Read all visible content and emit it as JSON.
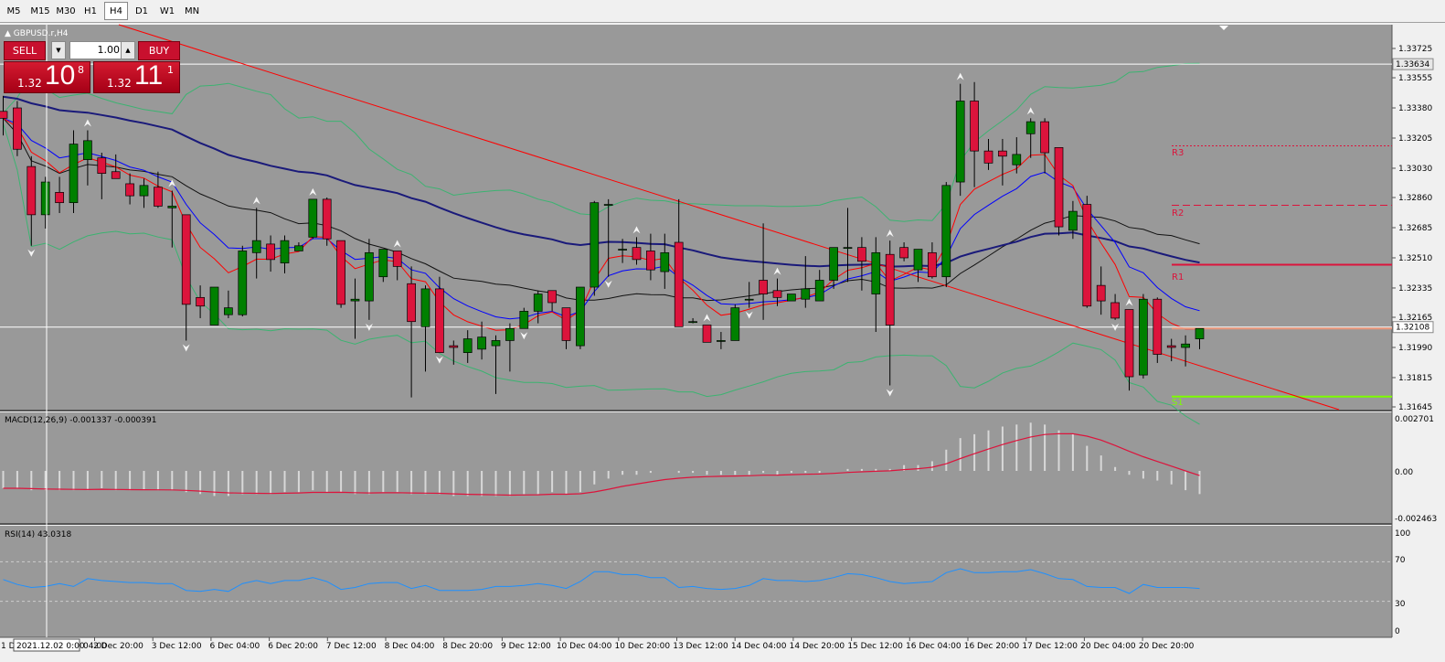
{
  "toolbar": {
    "timeframes": [
      "M5",
      "M15",
      "M30",
      "H1",
      "H4",
      "D1",
      "W1",
      "MN"
    ],
    "active": "H4"
  },
  "symbol_label": "GBPUSD.r,H4",
  "trade_panel": {
    "sell_label": "SELL",
    "buy_label": "BUY",
    "volume": "1.00",
    "sell_prefix": "1.32",
    "sell_big": "10",
    "sell_sup": "8",
    "buy_prefix": "1.32",
    "buy_big": "11",
    "buy_sup": "1"
  },
  "price_axis": {
    "ticks": [
      "1.33725",
      "1.33555",
      "1.33380",
      "1.33205",
      "1.33030",
      "1.32860",
      "1.32685",
      "1.32510",
      "1.32335",
      "1.32165",
      "1.31990",
      "1.31815",
      "1.31645"
    ],
    "high_label": "1.33634",
    "current_label": "1.32108"
  },
  "pivots": {
    "r3": "R3",
    "r2": "R2",
    "r1": "R1",
    "s1": "S1"
  },
  "macd": {
    "label": "MACD(12,26,9) -0.001337 -0.000391",
    "ticks": [
      "0.002701",
      "0.00",
      "-0.002463"
    ]
  },
  "rsi": {
    "label": "RSI(14) 43.0318",
    "ticks": [
      "100",
      "70",
      "30",
      "0"
    ]
  },
  "time_axis": {
    "labels": [
      "2 Dec 20:00",
      "3 Dec 12:00",
      "6 Dec 04:00",
      "6 Dec 20:00",
      "7 Dec 12:00",
      "8 Dec 04:00",
      "8 Dec 20:00",
      "9 Dec 12:00",
      "10 Dec 04:00",
      "10 Dec 20:00",
      "13 Dec 12:00",
      "14 Dec 04:00",
      "14 Dec 20:00",
      "15 Dec 12:00",
      "16 Dec 04:00",
      "16 Dec 20:00",
      "17 Dec 12:00",
      "20 Dec 04:00",
      "20 Dec 20:00"
    ],
    "first_partial": "1 D",
    "crosshair_label": "2021.12.02 0:00",
    "after_crosshair": "04:00"
  },
  "colors": {
    "bg": "#999999",
    "bull": "#008000",
    "bear": "#dc143c",
    "ma_navy": "#1a1a7a",
    "ma_blue": "#0000ff",
    "ma_red": "#ff0000",
    "trend": "#ff0000",
    "band": "#3cb371",
    "rsi_line": "#1e90ff"
  },
  "chart_data": {
    "type": "candlestick",
    "title": "GBPUSD.r,H4",
    "ylim": [
      1.3162,
      1.3383
    ],
    "candles": [
      [
        1.3336,
        1.3345,
        1.3322,
        1.3332
      ],
      [
        1.3338,
        1.3342,
        1.331,
        1.3314
      ],
      [
        1.3304,
        1.331,
        1.3258,
        1.3276
      ],
      [
        1.3276,
        1.3298,
        1.3268,
        1.3295
      ],
      [
        1.3289,
        1.3298,
        1.3277,
        1.3283
      ],
      [
        1.3283,
        1.3325,
        1.3277,
        1.3317
      ],
      [
        1.3308,
        1.3325,
        1.3293,
        1.3319
      ],
      [
        1.3309,
        1.3312,
        1.3285,
        1.33
      ],
      [
        1.3301,
        1.3311,
        1.3297,
        1.3297
      ],
      [
        1.3294,
        1.33,
        1.3282,
        1.3287
      ],
      [
        1.3287,
        1.3297,
        1.328,
        1.3293
      ],
      [
        1.3292,
        1.3301,
        1.328,
        1.3281
      ],
      [
        1.328,
        1.329,
        1.3257,
        1.3281
      ],
      [
        1.3276,
        1.3276,
        1.3203,
        1.3224
      ],
      [
        1.3228,
        1.3235,
        1.3216,
        1.3223
      ],
      [
        1.3212,
        1.3234,
        1.3212,
        1.3234
      ],
      [
        1.3218,
        1.3232,
        1.3216,
        1.3222
      ],
      [
        1.3218,
        1.3258,
        1.3217,
        1.3255
      ],
      [
        1.3254,
        1.328,
        1.3239,
        1.3261
      ],
      [
        1.3259,
        1.3264,
        1.3243,
        1.325
      ],
      [
        1.3248,
        1.3264,
        1.3242,
        1.3261
      ],
      [
        1.3255,
        1.326,
        1.3255,
        1.3258
      ],
      [
        1.3263,
        1.3285,
        1.3262,
        1.3285
      ],
      [
        1.3285,
        1.3286,
        1.3258,
        1.3262
      ],
      [
        1.3261,
        1.3261,
        1.3222,
        1.3224
      ],
      [
        1.3226,
        1.3239,
        1.3204,
        1.3227
      ],
      [
        1.3226,
        1.3262,
        1.3215,
        1.3254
      ],
      [
        1.324,
        1.3256,
        1.3237,
        1.3256
      ],
      [
        1.3255,
        1.3255,
        1.3238,
        1.3246
      ],
      [
        1.3236,
        1.3246,
        1.317,
        1.3214
      ],
      [
        1.3211,
        1.3235,
        1.3185,
        1.3233
      ],
      [
        1.3233,
        1.324,
        1.3196,
        1.3196
      ],
      [
        1.32,
        1.3203,
        1.3189,
        1.3199
      ],
      [
        1.3196,
        1.3209,
        1.319,
        1.3204
      ],
      [
        1.3198,
        1.3214,
        1.3192,
        1.3205
      ],
      [
        1.32,
        1.3206,
        1.3172,
        1.3203
      ],
      [
        1.3203,
        1.3213,
        1.3185,
        1.321
      ],
      [
        1.321,
        1.3222,
        1.321,
        1.322
      ],
      [
        1.322,
        1.3232,
        1.3213,
        1.323
      ],
      [
        1.3232,
        1.3232,
        1.322,
        1.3225
      ],
      [
        1.3222,
        1.3222,
        1.3198,
        1.3203
      ],
      [
        1.32,
        1.3234,
        1.3198,
        1.3234
      ],
      [
        1.3234,
        1.3284,
        1.3229,
        1.3283
      ],
      [
        1.3282,
        1.3285,
        1.324,
        1.3282
      ],
      [
        1.3256,
        1.3262,
        1.3248,
        1.3256
      ],
      [
        1.3257,
        1.3263,
        1.3247,
        1.325
      ],
      [
        1.3255,
        1.3265,
        1.3238,
        1.3244
      ],
      [
        1.3243,
        1.3265,
        1.3233,
        1.3254
      ],
      [
        1.326,
        1.3285,
        1.3211,
        1.3211
      ],
      [
        1.3214,
        1.3216,
        1.3213,
        1.3214
      ],
      [
        1.3212,
        1.3212,
        1.3202,
        1.3202
      ],
      [
        1.3203,
        1.3208,
        1.3198,
        1.3203
      ],
      [
        1.3203,
        1.3224,
        1.3203,
        1.3222
      ],
      [
        1.3227,
        1.3237,
        1.3222,
        1.3227
      ],
      [
        1.3238,
        1.3271,
        1.3215,
        1.323
      ],
      [
        1.3232,
        1.3239,
        1.3223,
        1.3228
      ],
      [
        1.3226,
        1.323,
        1.3226,
        1.323
      ],
      [
        1.3227,
        1.3252,
        1.3222,
        1.3233
      ],
      [
        1.3226,
        1.3244,
        1.3226,
        1.3238
      ],
      [
        1.3238,
        1.3257,
        1.3233,
        1.3257
      ],
      [
        1.3257,
        1.328,
        1.3237,
        1.3257
      ],
      [
        1.3257,
        1.3263,
        1.3232,
        1.3249
      ],
      [
        1.323,
        1.3263,
        1.3208,
        1.3254
      ],
      [
        1.3253,
        1.3261,
        1.3177,
        1.3212
      ],
      [
        1.3257,
        1.326,
        1.3249,
        1.3251
      ],
      [
        1.3244,
        1.3256,
        1.3237,
        1.3256
      ],
      [
        1.3254,
        1.326,
        1.3239,
        1.324
      ],
      [
        1.324,
        1.3295,
        1.3234,
        1.3293
      ],
      [
        1.3295,
        1.3352,
        1.3287,
        1.3342
      ],
      [
        1.3342,
        1.3353,
        1.3292,
        1.3313
      ],
      [
        1.3313,
        1.332,
        1.3302,
        1.3306
      ],
      [
        1.3313,
        1.332,
        1.3293,
        1.331
      ],
      [
        1.3305,
        1.3321,
        1.33,
        1.3311
      ],
      [
        1.3323,
        1.3332,
        1.3309,
        1.333
      ],
      [
        1.333,
        1.3332,
        1.33,
        1.3312
      ],
      [
        1.3315,
        1.3315,
        1.3264,
        1.3269
      ],
      [
        1.3267,
        1.3284,
        1.3262,
        1.3278
      ],
      [
        1.3282,
        1.3287,
        1.3222,
        1.3223
      ],
      [
        1.3235,
        1.3246,
        1.3218,
        1.3226
      ],
      [
        1.3225,
        1.323,
        1.3215,
        1.3216
      ],
      [
        1.3221,
        1.3221,
        1.3174,
        1.3182
      ],
      [
        1.3183,
        1.323,
        1.3181,
        1.3227
      ],
      [
        1.3227,
        1.3228,
        1.319,
        1.3195
      ],
      [
        1.32,
        1.3204,
        1.3191,
        1.3199
      ],
      [
        1.3199,
        1.3206,
        1.3188,
        1.3201
      ],
      [
        1.3204,
        1.3208,
        1.3198,
        1.321
      ]
    ],
    "macd_hist": [
      -0.0009,
      -0.0009,
      -0.001,
      -0.001,
      -0.001,
      -0.001,
      -0.001,
      -0.0009,
      -0.001,
      -0.001,
      -0.001,
      -0.001,
      -0.001,
      -0.0011,
      -0.0012,
      -0.0013,
      -0.0013,
      -0.0012,
      -0.0012,
      -0.0012,
      -0.0011,
      -0.0011,
      -0.001,
      -0.0011,
      -0.0011,
      -0.0012,
      -0.0012,
      -0.0011,
      -0.0011,
      -0.0012,
      -0.0012,
      -0.0012,
      -0.0013,
      -0.0013,
      -0.0013,
      -0.0013,
      -0.0013,
      -0.0012,
      -0.0012,
      -0.0011,
      -0.0012,
      -0.0011,
      -0.0007,
      -0.0004,
      -0.0002,
      -0.0002,
      -0.0001,
      0.0,
      -0.0001,
      -0.0001,
      -0.0002,
      -0.0002,
      -0.0002,
      -0.0002,
      -0.0001,
      -0.0002,
      -0.0001,
      -0.0001,
      -0.0001,
      0.0,
      0.0001,
      0.0001,
      0.0001,
      0.0001,
      0.0003,
      0.0003,
      0.0005,
      0.0011,
      0.0017,
      0.0019,
      0.0021,
      0.0023,
      0.0024,
      0.0025,
      0.0024,
      0.0021,
      0.0019,
      0.0013,
      0.0008,
      0.0002,
      -0.0002,
      -0.0004,
      -0.0005,
      -0.0007,
      -0.001,
      -0.0012
    ],
    "rsi_values": [
      52,
      47,
      44,
      45,
      48,
      45,
      53,
      51,
      50,
      49,
      49,
      48,
      48,
      41,
      40,
      42,
      40,
      48,
      51,
      48,
      51,
      51,
      54,
      50,
      42,
      44,
      48,
      49,
      49,
      43,
      46,
      41,
      41,
      41,
      42,
      45,
      45,
      46,
      48,
      46,
      43,
      50,
      60,
      60,
      57,
      57,
      54,
      54,
      44,
      45,
      43,
      42,
      43,
      46,
      53,
      51,
      51,
      50,
      51,
      54,
      58,
      57,
      54,
      50,
      48,
      49,
      50,
      59,
      63,
      59,
      59,
      60,
      60,
      62,
      58,
      53,
      52,
      45,
      44,
      44,
      38,
      47,
      44,
      44,
      44,
      43
    ],
    "rsi_levels": [
      70,
      30
    ],
    "pivot_levels": {
      "R3": 1.3316,
      "R2": 1.32815,
      "R1": 1.3247,
      "S1": 1.31705
    },
    "horizontal_lines": [
      1.33634,
      1.32108
    ]
  }
}
